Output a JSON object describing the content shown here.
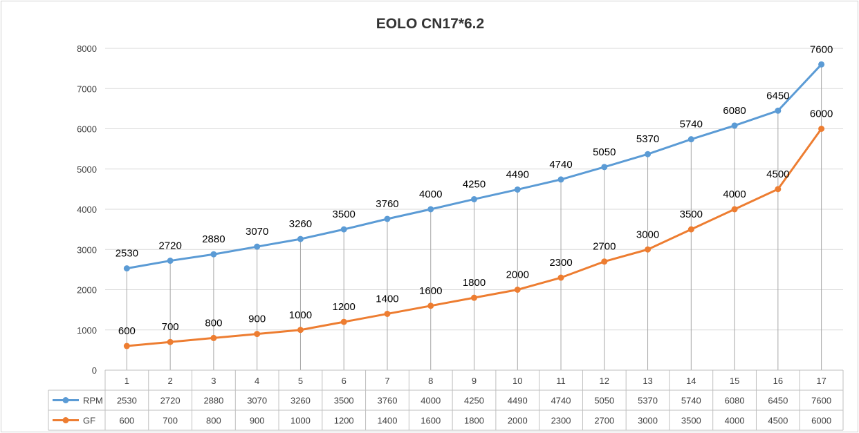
{
  "chart_data": {
    "type": "line",
    "title": "EOLO CN17*6.2",
    "categories": [
      "1",
      "2",
      "3",
      "4",
      "5",
      "6",
      "7",
      "8",
      "9",
      "10",
      "11",
      "12",
      "13",
      "14",
      "15",
      "16",
      "17"
    ],
    "series": [
      {
        "name": "RPM",
        "color": "#5b9bd5",
        "values": [
          2530,
          2720,
          2880,
          3070,
          3260,
          3500,
          3760,
          4000,
          4250,
          4490,
          4740,
          5050,
          5370,
          5740,
          6080,
          6450,
          7600
        ]
      },
      {
        "name": "GF",
        "color": "#ed7d31",
        "values": [
          600,
          700,
          800,
          900,
          1000,
          1200,
          1400,
          1600,
          1800,
          2000,
          2300,
          2700,
          3000,
          3500,
          4000,
          4500,
          6000
        ]
      }
    ],
    "ylim": [
      0,
      8000
    ],
    "yticks": [
      "0",
      "1000",
      "2000",
      "3000",
      "4000",
      "5000",
      "6000",
      "7000",
      "8000"
    ],
    "grid": true,
    "data_labels": true,
    "data_table": true
  }
}
